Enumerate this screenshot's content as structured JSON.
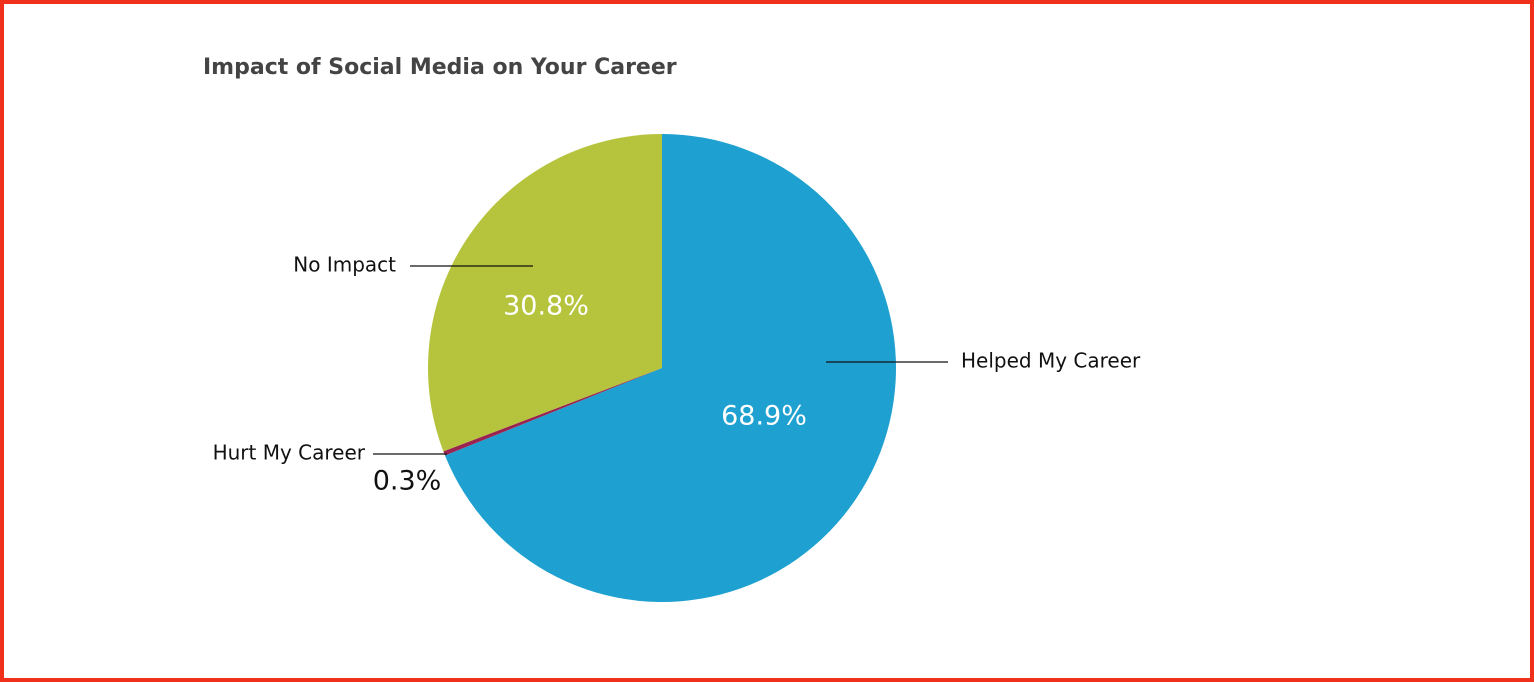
{
  "chart_data": {
    "type": "pie",
    "title": "Impact of Social Media on Your Career",
    "categories": [
      "Helped My Career",
      "Hurt My Career",
      "No Impact"
    ],
    "values": [
      68.9,
      0.3,
      30.8
    ],
    "value_labels": [
      "68.9%",
      "0.3%",
      "30.8%"
    ],
    "colors": [
      "#1ea0d0",
      "#9b2350",
      "#b5c43c"
    ]
  }
}
